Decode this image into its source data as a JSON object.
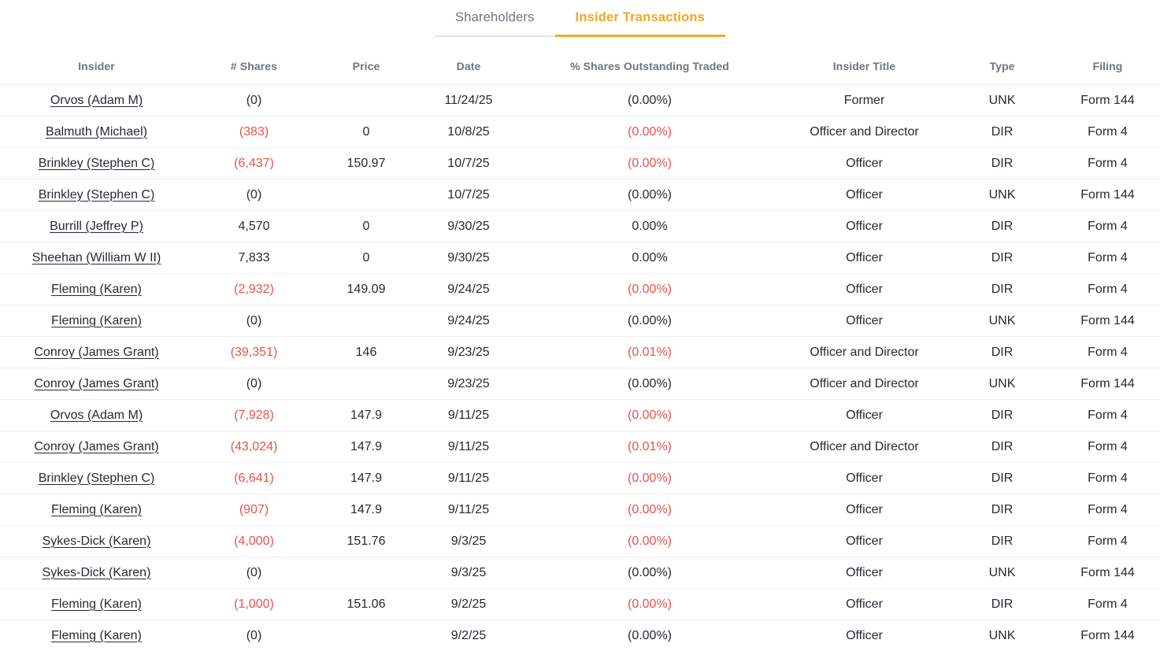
{
  "tabs": [
    {
      "label": "Shareholders",
      "active": false
    },
    {
      "label": "Insider Transactions",
      "active": true
    }
  ],
  "colors": {
    "active_tab_orange": "#f5a623",
    "negative_red": "#e9524a",
    "header_gray": "#6e757c",
    "body_text": "#252a31",
    "row_divider": "#efefef"
  },
  "table": {
    "columns": {
      "insider": "Insider",
      "shares": "# Shares",
      "price": "Price",
      "date": "Date",
      "pct": "% Shares Outstanding Traded",
      "title": "Insider Title",
      "type": "Type",
      "filing": "Filing"
    },
    "rows": [
      {
        "insider": "Orvos (Adam M)",
        "shares": "(0)",
        "price": "",
        "date": "11/24/25",
        "pct": "(0.00%)",
        "title": "Former",
        "type": "UNK",
        "filing": "Form 144",
        "neg": false
      },
      {
        "insider": "Balmuth (Michael)",
        "shares": "(383)",
        "price": "0",
        "date": "10/8/25",
        "pct": "(0.00%)",
        "title": "Officer and Director",
        "type": "DIR",
        "filing": "Form 4",
        "neg": true
      },
      {
        "insider": "Brinkley (Stephen C)",
        "shares": "(6,437)",
        "price": "150.97",
        "date": "10/7/25",
        "pct": "(0.00%)",
        "title": "Officer",
        "type": "DIR",
        "filing": "Form 4",
        "neg": true
      },
      {
        "insider": "Brinkley (Stephen C)",
        "shares": "(0)",
        "price": "",
        "date": "10/7/25",
        "pct": "(0.00%)",
        "title": "Officer",
        "type": "UNK",
        "filing": "Form 144",
        "neg": false
      },
      {
        "insider": "Burrill (Jeffrey P)",
        "shares": "4,570",
        "price": "0",
        "date": "9/30/25",
        "pct": "0.00%",
        "title": "Officer",
        "type": "DIR",
        "filing": "Form 4",
        "neg": false
      },
      {
        "insider": "Sheehan (William W II)",
        "shares": "7,833",
        "price": "0",
        "date": "9/30/25",
        "pct": "0.00%",
        "title": "Officer",
        "type": "DIR",
        "filing": "Form 4",
        "neg": false
      },
      {
        "insider": "Fleming (Karen)",
        "shares": "(2,932)",
        "price": "149.09",
        "date": "9/24/25",
        "pct": "(0.00%)",
        "title": "Officer",
        "type": "DIR",
        "filing": "Form 4",
        "neg": true
      },
      {
        "insider": "Fleming (Karen)",
        "shares": "(0)",
        "price": "",
        "date": "9/24/25",
        "pct": "(0.00%)",
        "title": "Officer",
        "type": "UNK",
        "filing": "Form 144",
        "neg": false
      },
      {
        "insider": "Conroy (James Grant)",
        "shares": "(39,351)",
        "price": "146",
        "date": "9/23/25",
        "pct": "(0.01%)",
        "title": "Officer and Director",
        "type": "DIR",
        "filing": "Form 4",
        "neg": true
      },
      {
        "insider": "Conroy (James Grant)",
        "shares": "(0)",
        "price": "",
        "date": "9/23/25",
        "pct": "(0.00%)",
        "title": "Officer and Director",
        "type": "UNK",
        "filing": "Form 144",
        "neg": false
      },
      {
        "insider": "Orvos (Adam M)",
        "shares": "(7,928)",
        "price": "147.9",
        "date": "9/11/25",
        "pct": "(0.00%)",
        "title": "Officer",
        "type": "DIR",
        "filing": "Form 4",
        "neg": true
      },
      {
        "insider": "Conroy (James Grant)",
        "shares": "(43,024)",
        "price": "147.9",
        "date": "9/11/25",
        "pct": "(0.01%)",
        "title": "Officer and Director",
        "type": "DIR",
        "filing": "Form 4",
        "neg": true
      },
      {
        "insider": "Brinkley (Stephen C)",
        "shares": "(6,641)",
        "price": "147.9",
        "date": "9/11/25",
        "pct": "(0.00%)",
        "title": "Officer",
        "type": "DIR",
        "filing": "Form 4",
        "neg": true
      },
      {
        "insider": "Fleming (Karen)",
        "shares": "(907)",
        "price": "147.9",
        "date": "9/11/25",
        "pct": "(0.00%)",
        "title": "Officer",
        "type": "DIR",
        "filing": "Form 4",
        "neg": true
      },
      {
        "insider": "Sykes-Dick (Karen)",
        "shares": "(4,000)",
        "price": "151.76",
        "date": "9/3/25",
        "pct": "(0.00%)",
        "title": "Officer",
        "type": "DIR",
        "filing": "Form 4",
        "neg": true
      },
      {
        "insider": "Sykes-Dick (Karen)",
        "shares": "(0)",
        "price": "",
        "date": "9/3/25",
        "pct": "(0.00%)",
        "title": "Officer",
        "type": "UNK",
        "filing": "Form 144",
        "neg": false
      },
      {
        "insider": "Fleming (Karen)",
        "shares": "(1,000)",
        "price": "151.06",
        "date": "9/2/25",
        "pct": "(0.00%)",
        "title": "Officer",
        "type": "DIR",
        "filing": "Form 4",
        "neg": true
      },
      {
        "insider": "Fleming (Karen)",
        "shares": "(0)",
        "price": "",
        "date": "9/2/25",
        "pct": "(0.00%)",
        "title": "Officer",
        "type": "UNK",
        "filing": "Form 144",
        "neg": false
      }
    ]
  }
}
